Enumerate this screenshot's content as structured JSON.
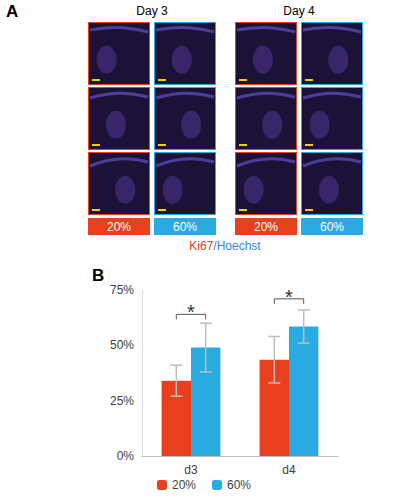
{
  "panel_labels": [
    "A",
    "B"
  ],
  "panel_a": {
    "days": [
      "Day 3",
      "Day 4"
    ],
    "conditions": [
      {
        "label": "20%",
        "color": "#e8401c"
      },
      {
        "label": "60%",
        "color": "#29aae1"
      }
    ],
    "stain": [
      {
        "text": "Ki67",
        "color": "#e8401c"
      },
      {
        "text": "/Hoechst",
        "color": "#3a7fd6"
      }
    ]
  },
  "chart_data": {
    "type": "bar",
    "categories": [
      "d3",
      "d4"
    ],
    "series": [
      {
        "name": "20%",
        "color": "#e8401c",
        "values": [
          34,
          43.5
        ],
        "errors": [
          7,
          10.5
        ]
      },
      {
        "name": "60%",
        "color": "#29aae1",
        "values": [
          49,
          58.5
        ],
        "errors": [
          11,
          7.5
        ]
      }
    ],
    "ylim": [
      0,
      75
    ],
    "yticks": [
      {
        "value": 0,
        "label": "0%"
      },
      {
        "value": 25,
        "label": "25%"
      },
      {
        "value": 50,
        "label": "50%"
      },
      {
        "value": 75,
        "label": "75%"
      }
    ],
    "grid": false,
    "legend": "bottom",
    "annotations": [
      {
        "category": "d3",
        "text": "*",
        "y": 64
      },
      {
        "category": "d4",
        "text": "*",
        "y": 71
      }
    ]
  }
}
